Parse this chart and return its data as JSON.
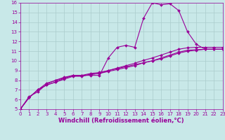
{
  "xlabel": "Windchill (Refroidissement éolien,°C)",
  "line_color": "#990099",
  "bg_color": "#c8e8e8",
  "grid_color": "#aacccc",
  "xlim": [
    0,
    23
  ],
  "ylim": [
    5,
    16
  ],
  "xticks": [
    0,
    1,
    2,
    3,
    4,
    5,
    6,
    7,
    8,
    9,
    10,
    11,
    12,
    13,
    14,
    15,
    16,
    17,
    18,
    19,
    20,
    21,
    22,
    23
  ],
  "yticks": [
    5,
    6,
    7,
    8,
    9,
    10,
    11,
    12,
    13,
    14,
    15,
    16
  ],
  "line1_x": [
    0,
    1,
    2,
    3,
    4,
    5,
    6,
    7,
    8,
    9,
    10,
    11,
    12,
    13,
    14,
    15,
    16,
    17,
    18,
    19,
    20,
    21,
    22,
    23
  ],
  "line1_y": [
    5.0,
    6.2,
    7.0,
    7.5,
    7.8,
    8.2,
    8.5,
    8.5,
    8.7,
    8.8,
    9.0,
    9.2,
    9.4,
    9.6,
    9.8,
    10.0,
    10.2,
    10.5,
    10.8,
    11.0,
    11.1,
    11.2,
    11.2,
    11.2
  ],
  "line2_x": [
    0,
    1,
    2,
    3,
    4,
    5,
    6,
    7,
    8,
    9,
    10,
    11,
    12,
    13,
    14,
    15,
    16,
    17,
    18,
    19,
    20,
    21,
    22,
    23
  ],
  "line2_y": [
    5.0,
    6.2,
    7.0,
    7.5,
    7.8,
    8.1,
    8.4,
    8.4,
    8.6,
    8.7,
    8.9,
    9.1,
    9.3,
    9.5,
    9.8,
    10.0,
    10.3,
    10.6,
    10.9,
    11.1,
    11.15,
    11.2,
    11.2,
    11.2
  ],
  "line3_x": [
    0,
    1,
    2,
    3,
    4,
    5,
    6,
    7,
    8,
    9,
    10,
    11,
    12,
    13,
    14,
    15,
    16,
    17,
    18,
    19,
    20,
    21,
    22,
    23
  ],
  "line3_y": [
    5.0,
    6.3,
    6.8,
    7.6,
    8.0,
    8.3,
    8.5,
    8.5,
    8.5,
    8.5,
    10.3,
    11.4,
    11.6,
    11.4,
    14.4,
    16.0,
    15.8,
    15.9,
    15.2,
    13.0,
    11.7,
    11.2,
    11.2,
    11.2
  ],
  "line4_x": [
    0,
    1,
    2,
    3,
    4,
    5,
    6,
    7,
    8,
    9,
    10,
    11,
    12,
    13,
    14,
    15,
    16,
    17,
    18,
    19,
    20,
    21,
    22,
    23
  ],
  "line4_y": [
    5.0,
    6.2,
    7.0,
    7.7,
    7.95,
    8.25,
    8.45,
    8.45,
    8.6,
    8.7,
    9.0,
    9.25,
    9.5,
    9.75,
    10.05,
    10.3,
    10.6,
    10.9,
    11.2,
    11.35,
    11.4,
    11.4,
    11.4,
    11.4
  ],
  "marker": "D",
  "markersize": 2.0,
  "linewidth": 0.8,
  "tick_fontsize": 5.0,
  "xlabel_fontsize": 6.0,
  "tick_color": "#990099",
  "label_color": "#990099"
}
